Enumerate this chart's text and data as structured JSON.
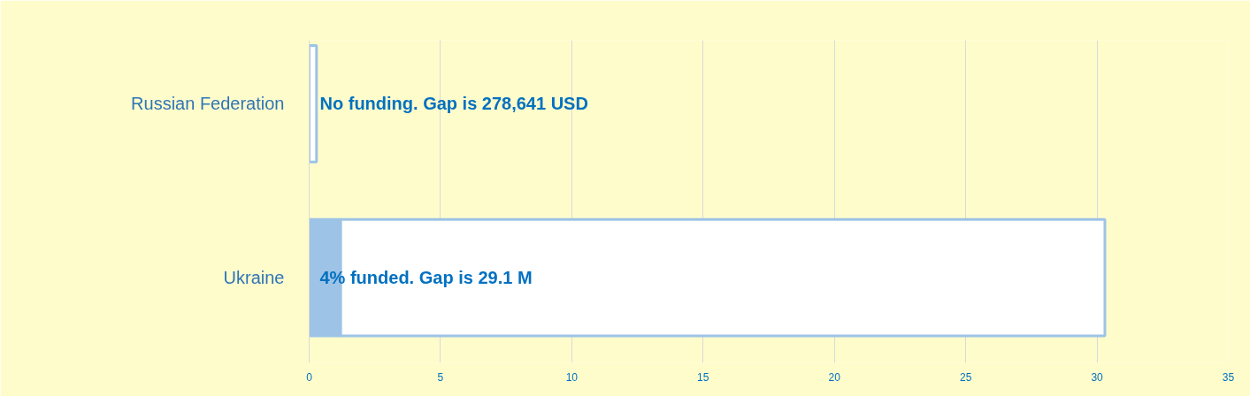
{
  "chart_data": {
    "type": "bar",
    "orientation": "horizontal",
    "stacked": true,
    "categories": [
      "Russian Federation",
      "Ukraine"
    ],
    "series": [
      {
        "name": null,
        "color": "#9dc3e6",
        "values": [
          0,
          1.2
        ]
      },
      {
        "name": null,
        "color": "#ffffff",
        "values": [
          0.28,
          29.1
        ]
      }
    ],
    "xlim": [
      0,
      35
    ],
    "xticks": [
      0,
      5,
      10,
      15,
      20,
      25,
      30,
      35
    ],
    "grid": "x",
    "annotations": [
      "No funding. Gap is 278,641 USD",
      "4% funded. Gap is 29.1 M"
    ]
  }
}
